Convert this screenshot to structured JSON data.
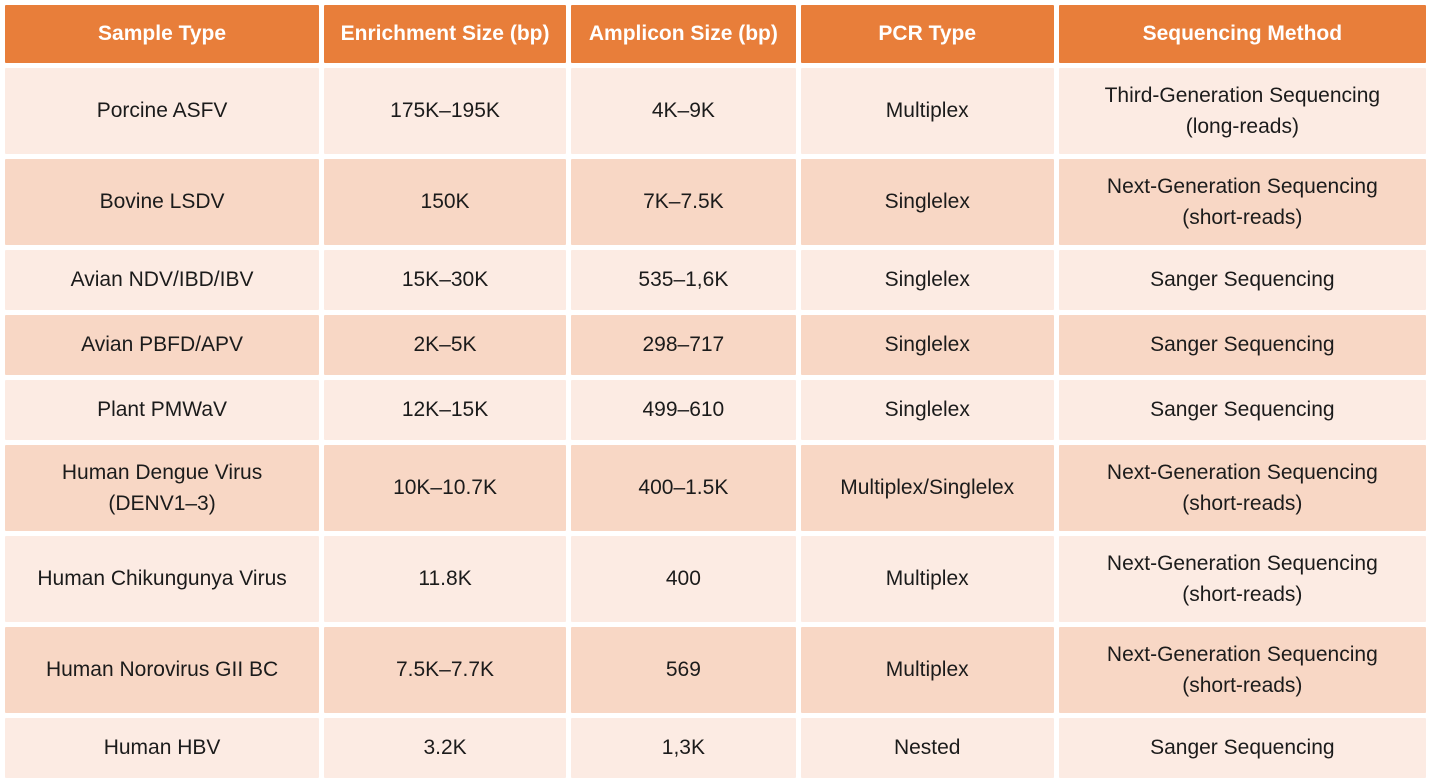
{
  "colors": {
    "header_bg": "#E87E3A",
    "header_text": "#FFFFFF",
    "row_light": "#FCEBE3",
    "row_dark": "#F8D7C5",
    "cell_text": "#1B1B1B",
    "grid": "#FFFFFF"
  },
  "chart_data": {
    "type": "table",
    "title": "",
    "columns": [
      "Sample Type",
      "Enrichment Size (bp)",
      "Amplicon Size (bp)",
      "PCR Type",
      "Sequencing Method"
    ],
    "rows": [
      [
        "Porcine ASFV",
        "175K–195K",
        "4K–9K",
        "Multiplex",
        "Third-Generation Sequencing\n(long-reads)"
      ],
      [
        "Bovine LSDV",
        "150K",
        "7K–7.5K",
        "Singlelex",
        "Next-Generation Sequencing\n(short-reads)"
      ],
      [
        "Avian NDV/IBD/IBV",
        "15K–30K",
        "535–1,6K",
        "Singlelex",
        "Sanger Sequencing"
      ],
      [
        "Avian PBFD/APV",
        "2K–5K",
        "298–717",
        "Singlelex",
        "Sanger Sequencing"
      ],
      [
        "Plant PMWaV",
        "12K–15K",
        "499–610",
        "Singlelex",
        "Sanger Sequencing"
      ],
      [
        "Human Dengue Virus\n(DENV1–3)",
        "10K–10.7K",
        "400–1.5K",
        "Multiplex/Singlelex",
        "Next-Generation Sequencing\n(short-reads)"
      ],
      [
        "Human Chikungunya Virus",
        "11.8K",
        "400",
        "Multiplex",
        "Next-Generation Sequencing\n(short-reads)"
      ],
      [
        "Human Norovirus GII BC",
        "7.5K–7.7K",
        "569",
        "Multiplex",
        "Next-Generation Sequencing\n(short-reads)"
      ],
      [
        "Human HBV",
        "3.2K",
        "1,3K",
        "Nested",
        "Sanger Sequencing"
      ]
    ]
  }
}
